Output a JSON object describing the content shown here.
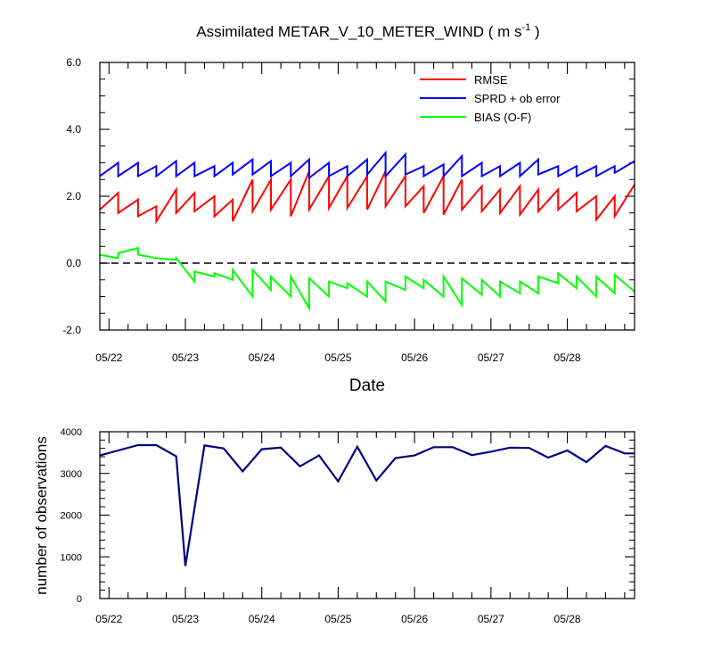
{
  "figure": {
    "title_main": "Assimilated METAR_V_10_METER_WIND ( m s",
    "title_sup": "-1",
    "title_close": " )"
  },
  "chart_data": [
    {
      "type": "line",
      "xlabel": "Date",
      "ylabel": "",
      "ylim": [
        -2.0,
        6.0
      ],
      "yticks": [
        "-2.0",
        "0.0",
        "2.0",
        "4.0",
        "6.0"
      ],
      "x_tick_labels": [
        "05/22",
        "05/23",
        "05/24",
        "05/25",
        "05/26",
        "05/27",
        "05/28"
      ],
      "x_range_days": [
        -0.12,
        6.88
      ],
      "zero_line": "dashed",
      "legend_position": "top-right",
      "series": [
        {
          "name": "RMSE",
          "color": "#ff0000",
          "x": [
            -0.12,
            -0.12,
            0.12,
            0.12,
            0.38,
            0.38,
            0.62,
            0.62,
            0.88,
            0.88,
            1.12,
            1.12,
            1.38,
            1.38,
            1.62,
            1.62,
            1.88,
            1.88,
            2.12,
            2.12,
            2.38,
            2.38,
            2.62,
            2.62,
            2.88,
            2.88,
            3.12,
            3.12,
            3.38,
            3.38,
            3.62,
            3.62,
            3.88,
            3.88,
            4.12,
            4.12,
            4.38,
            4.38,
            4.62,
            4.62,
            4.88,
            4.88,
            5.12,
            5.12,
            5.38,
            5.38,
            5.62,
            5.62,
            5.88,
            5.88,
            6.12,
            6.12,
            6.38,
            6.38,
            6.62,
            6.62,
            6.88
          ],
          "y": [
            1.6,
            1.6,
            2.1,
            1.5,
            1.9,
            1.4,
            1.7,
            1.25,
            2.2,
            1.5,
            2.1,
            1.55,
            2.0,
            1.4,
            1.9,
            1.25,
            2.5,
            1.55,
            2.5,
            1.6,
            2.5,
            1.4,
            2.75,
            1.6,
            2.6,
            1.65,
            2.6,
            1.65,
            2.6,
            1.6,
            2.75,
            1.7,
            2.6,
            1.7,
            2.3,
            1.5,
            2.6,
            1.45,
            2.5,
            1.6,
            2.3,
            1.55,
            2.2,
            1.5,
            2.3,
            1.45,
            2.2,
            1.55,
            2.2,
            1.6,
            2.1,
            1.55,
            2.0,
            1.3,
            2.0,
            1.4,
            2.35
          ]
        },
        {
          "name": "SPRD + ob error",
          "color": "#0000ff",
          "x": [
            -0.12,
            -0.12,
            0.12,
            0.12,
            0.38,
            0.38,
            0.62,
            0.62,
            0.88,
            0.88,
            1.12,
            1.12,
            1.38,
            1.38,
            1.62,
            1.62,
            1.88,
            1.88,
            2.12,
            2.12,
            2.38,
            2.38,
            2.62,
            2.62,
            2.88,
            2.88,
            3.12,
            3.12,
            3.38,
            3.38,
            3.62,
            3.62,
            3.88,
            3.88,
            4.12,
            4.12,
            4.38,
            4.38,
            4.62,
            4.62,
            4.88,
            4.88,
            5.12,
            5.12,
            5.38,
            5.38,
            5.62,
            5.62,
            5.88,
            5.88,
            6.12,
            6.12,
            6.38,
            6.38,
            6.62,
            6.62,
            6.88
          ],
          "y": [
            2.6,
            2.6,
            3.0,
            2.6,
            3.0,
            2.6,
            2.9,
            2.6,
            3.05,
            2.6,
            3.0,
            2.6,
            2.9,
            2.6,
            3.0,
            2.65,
            3.1,
            2.65,
            3.05,
            2.6,
            3.0,
            2.6,
            3.1,
            2.55,
            3.0,
            2.6,
            2.9,
            2.6,
            3.1,
            2.65,
            3.3,
            2.6,
            3.25,
            2.65,
            2.9,
            2.6,
            2.95,
            2.6,
            3.2,
            2.6,
            3.0,
            2.6,
            2.9,
            2.6,
            3.0,
            2.6,
            3.1,
            2.65,
            2.9,
            2.6,
            2.9,
            2.6,
            2.9,
            2.6,
            2.9,
            2.7,
            3.05
          ]
        },
        {
          "name": "BIAS (O-F)",
          "color": "#00ff00",
          "x": [
            -0.12,
            -0.12,
            0.12,
            0.12,
            0.38,
            0.38,
            0.62,
            0.62,
            0.88,
            0.88,
            1.12,
            1.12,
            1.38,
            1.38,
            1.62,
            1.62,
            1.88,
            1.88,
            2.12,
            2.12,
            2.38,
            2.38,
            2.62,
            2.62,
            2.88,
            2.88,
            3.12,
            3.12,
            3.38,
            3.38,
            3.62,
            3.62,
            3.88,
            3.88,
            4.12,
            4.12,
            4.38,
            4.38,
            4.62,
            4.62,
            4.88,
            4.88,
            5.12,
            5.12,
            5.38,
            5.38,
            5.62,
            5.62,
            5.88,
            5.88,
            6.12,
            6.12,
            6.38,
            6.38,
            6.62,
            6.62,
            6.88
          ],
          "y": [
            0.25,
            0.25,
            0.15,
            0.3,
            0.45,
            0.25,
            0.15,
            0.15,
            0.1,
            0.15,
            -0.55,
            -0.25,
            -0.4,
            -0.3,
            -0.5,
            -0.2,
            -1.0,
            -0.2,
            -0.8,
            -0.4,
            -1.0,
            -0.4,
            -1.35,
            -0.45,
            -1.0,
            -0.55,
            -0.75,
            -0.6,
            -1.0,
            -0.55,
            -1.15,
            -0.55,
            -0.8,
            -0.4,
            -0.75,
            -0.5,
            -1.0,
            -0.4,
            -1.25,
            -0.45,
            -0.95,
            -0.5,
            -1.0,
            -0.55,
            -0.9,
            -0.55,
            -0.9,
            -0.4,
            -0.6,
            -0.3,
            -0.75,
            -0.4,
            -1.0,
            -0.4,
            -0.9,
            -0.35,
            -0.85
          ]
        }
      ]
    },
    {
      "type": "line",
      "xlabel": "",
      "ylabel": "number of observations",
      "ylim": [
        0,
        4000
      ],
      "yticks": [
        "0",
        "1000",
        "2000",
        "3000",
        "4000"
      ],
      "x_tick_labels": [
        "05/22",
        "05/23",
        "05/24",
        "05/25",
        "05/26",
        "05/27",
        "05/28"
      ],
      "x_range_days": [
        -0.12,
        6.88
      ],
      "series": [
        {
          "color": "#000080",
          "x": [
            -0.12,
            0.12,
            0.38,
            0.62,
            0.88,
            1.0,
            1.25,
            1.5,
            1.75,
            2.0,
            2.25,
            2.5,
            2.75,
            3.0,
            3.25,
            3.5,
            3.75,
            4.0,
            4.25,
            4.5,
            4.75,
            5.0,
            5.25,
            5.5,
            5.75,
            6.0,
            6.25,
            6.5,
            6.75,
            6.88
          ],
          "y": [
            3430,
            3550,
            3680,
            3680,
            3410,
            780,
            3670,
            3600,
            3050,
            3580,
            3620,
            3170,
            3430,
            2810,
            3640,
            2830,
            3370,
            3430,
            3630,
            3630,
            3440,
            3520,
            3620,
            3610,
            3380,
            3550,
            3270,
            3660,
            3480,
            3480
          ]
        }
      ]
    }
  ]
}
